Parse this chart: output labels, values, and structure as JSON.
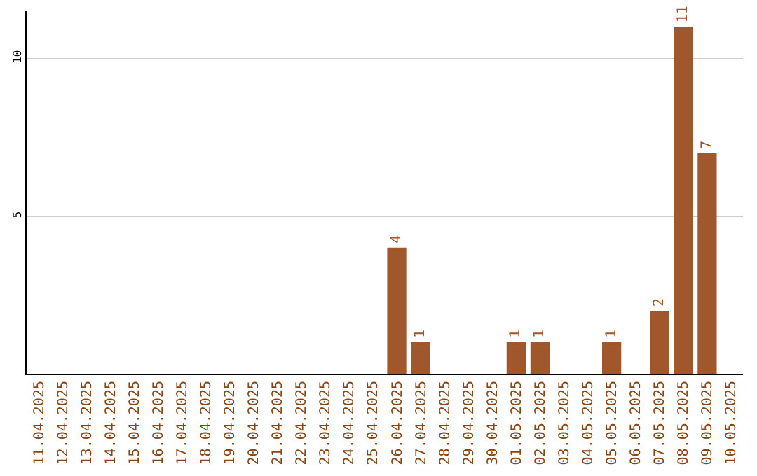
{
  "chart_data": {
    "type": "bar",
    "categories": [
      "11.04.2025",
      "12.04.2025",
      "13.04.2025",
      "14.04.2025",
      "15.04.2025",
      "16.04.2025",
      "17.04.2025",
      "18.04.2025",
      "19.04.2025",
      "20.04.2025",
      "21.04.2025",
      "22.04.2025",
      "23.04.2025",
      "24.04.2025",
      "25.04.2025",
      "26.04.2025",
      "27.04.2025",
      "28.04.2025",
      "29.04.2025",
      "30.04.2025",
      "01.05.2025",
      "02.05.2025",
      "03.05.2025",
      "04.05.2025",
      "05.05.2025",
      "06.05.2025",
      "07.05.2025",
      "08.05.2025",
      "09.05.2025",
      "10.05.2025"
    ],
    "values": [
      0,
      0,
      0,
      0,
      0,
      0,
      0,
      0,
      0,
      0,
      0,
      0,
      0,
      0,
      0,
      4,
      1,
      0,
      0,
      0,
      1,
      1,
      0,
      0,
      1,
      0,
      2,
      11,
      7,
      0
    ],
    "value_labels": [
      null,
      null,
      null,
      null,
      null,
      null,
      null,
      null,
      null,
      null,
      null,
      null,
      null,
      null,
      null,
      "4",
      "1",
      null,
      null,
      null,
      "1",
      "1",
      null,
      null,
      "1",
      null,
      "2",
      "11",
      "7",
      null
    ],
    "color": "#a0572b",
    "ylim": [
      0,
      11.5
    ],
    "yticks": [
      5,
      10
    ],
    "grid": "y",
    "legend": false
  }
}
